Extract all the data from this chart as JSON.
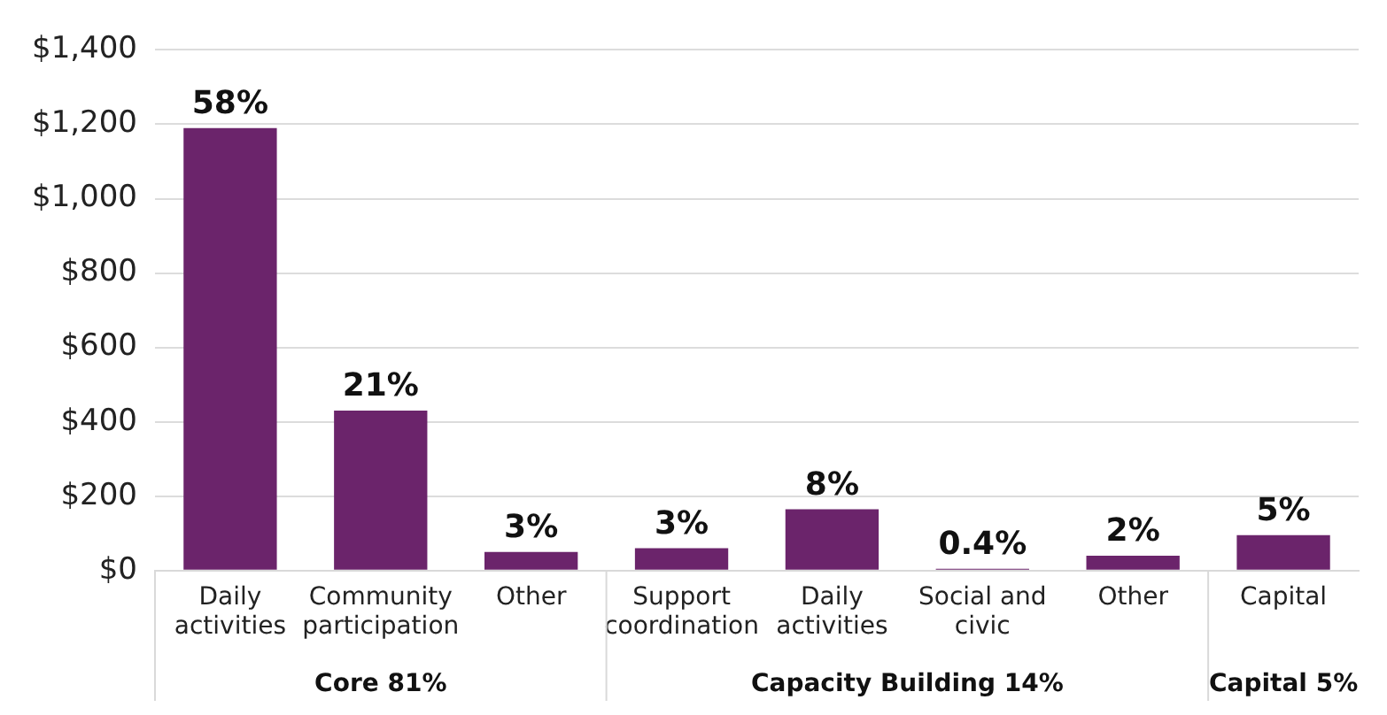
{
  "chart_data": {
    "type": "bar",
    "categories": [
      "Daily activities",
      "Community participation",
      "Other",
      "Support coordination",
      "Daily activities",
      "Social and civic",
      "Other",
      "Capital"
    ],
    "values": [
      1190,
      430,
      50,
      60,
      165,
      5,
      40,
      95
    ],
    "color": "#6b246b",
    "ylim": [
      0,
      1400
    ],
    "yticks": [
      {
        "value": 0,
        "label": "$0"
      },
      {
        "value": 200,
        "label": "$200"
      },
      {
        "value": 400,
        "label": "$400"
      },
      {
        "value": 600,
        "label": "$600"
      },
      {
        "value": 800,
        "label": "$800"
      },
      {
        "value": 1000,
        "label": "$1,000"
      },
      {
        "value": 1200,
        "label": "$1,200"
      },
      {
        "value": 1400,
        "label": "$1,400"
      }
    ],
    "grid": "y",
    "legend": false,
    "annotations": [
      "58%",
      "21%",
      "3%",
      "3%",
      "8%",
      "0.4%",
      "2%",
      "5%",
      "Core 81%",
      "Capacity Building 14%",
      "Capital 5%"
    ]
  }
}
